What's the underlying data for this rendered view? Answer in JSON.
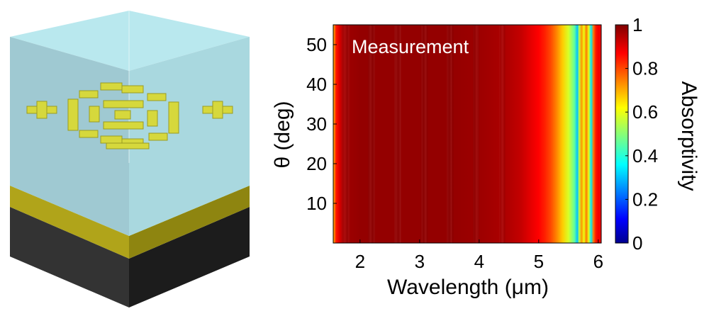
{
  "chart_data": {
    "type": "heatmap",
    "annotation": "Measurement",
    "xlabel": "Wavelength (μm)",
    "ylabel": "θ (deg)",
    "colorbar_label": "Absorptivity",
    "xlim": [
      1.55,
      6.05
    ],
    "ylim": [
      0,
      55
    ],
    "clim": [
      0,
      1
    ],
    "colormap": "jet",
    "x_ticks": [
      2,
      3,
      4,
      5,
      6
    ],
    "x_tick_labels": [
      "2",
      "3",
      "4",
      "5",
      "6"
    ],
    "y_ticks": [
      10,
      20,
      30,
      40,
      50
    ],
    "y_tick_labels": [
      "10",
      "20",
      "30",
      "40",
      "50"
    ],
    "colorbar_ticks": [
      0,
      0.2,
      0.4,
      0.6,
      0.8,
      1
    ],
    "colorbar_tick_labels": [
      "0",
      "0.2",
      "0.4",
      "0.6",
      "0.8",
      "1"
    ],
    "absorptivity_vs_wavelength": {
      "wavelength": [
        1.55,
        1.6,
        1.65,
        1.7,
        1.8,
        2.0,
        2.5,
        3.0,
        3.5,
        4.0,
        4.3,
        4.5,
        4.7,
        4.85,
        5.0,
        5.1,
        5.2,
        5.3,
        5.4,
        5.5,
        5.55,
        5.6,
        5.65,
        5.68,
        5.72,
        5.76,
        5.8,
        5.84,
        5.88,
        5.92,
        5.96,
        6.0,
        6.05
      ],
      "absorptivity": [
        0.68,
        0.85,
        0.9,
        0.95,
        0.97,
        0.98,
        0.98,
        0.98,
        0.98,
        0.97,
        0.96,
        0.95,
        0.93,
        0.9,
        0.87,
        0.84,
        0.8,
        0.74,
        0.67,
        0.58,
        0.52,
        0.46,
        0.3,
        0.55,
        0.72,
        0.6,
        0.75,
        0.6,
        0.34,
        0.75,
        0.85,
        0.88,
        0.88
      ]
    }
  }
}
